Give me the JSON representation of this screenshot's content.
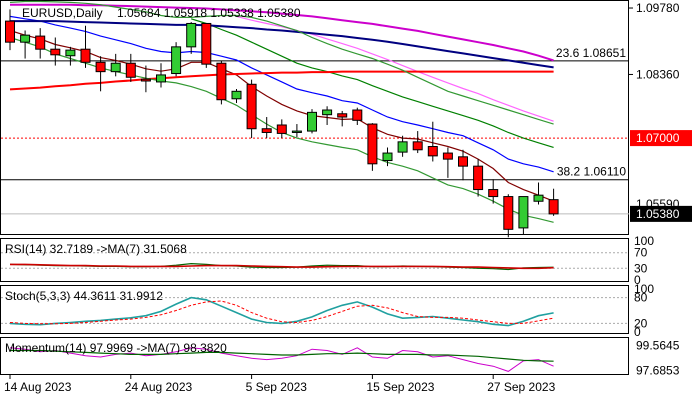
{
  "chart_data": {
    "type": "candlestick",
    "instrument": "EURUSD,Daily",
    "header_ohlc": "1.05684 1.05918 1.05338 1.05380",
    "x_labels": [
      {
        "idx": 0,
        "text": "14 Aug 2023"
      },
      {
        "idx": 8,
        "text": "24 Aug 2023"
      },
      {
        "idx": 16,
        "text": "5 Sep 2023"
      },
      {
        "idx": 24,
        "text": "15 Sep 2023"
      },
      {
        "idx": 32,
        "text": "27 Sep 2023"
      }
    ],
    "price_axis": {
      "ylim": [
        1.0495,
        1.0993
      ],
      "ticks": [
        "1.09780",
        "1.08360",
        "1.05380"
      ],
      "partial_tick": {
        "text": "1.05590",
        "value": 1.0559
      },
      "current": {
        "text": "1.05380",
        "value": 1.0538
      },
      "level_box": {
        "text": "1.07000",
        "value": 1.07,
        "color": "#ff0000"
      }
    },
    "fib_levels": [
      {
        "label": "23.6 1.08651",
        "value": 1.08651
      },
      {
        "label": "38.2 1.06110",
        "value": 1.0611
      }
    ],
    "candles": [
      {
        "o": 1.095,
        "h": 1.0975,
        "l": 1.0888,
        "c": 1.0905
      },
      {
        "o": 1.0905,
        "h": 1.093,
        "l": 1.087,
        "c": 1.092
      },
      {
        "o": 1.0918,
        "h": 1.0935,
        "l": 1.087,
        "c": 1.089
      },
      {
        "o": 1.089,
        "h": 1.0915,
        "l": 1.0855,
        "c": 1.0878
      },
      {
        "o": 1.0876,
        "h": 1.0895,
        "l": 1.0855,
        "c": 1.0888
      },
      {
        "o": 1.089,
        "h": 1.094,
        "l": 1.085,
        "c": 1.0862
      },
      {
        "o": 1.0862,
        "h": 1.0875,
        "l": 1.08,
        "c": 1.0842
      },
      {
        "o": 1.0842,
        "h": 1.088,
        "l": 1.0832,
        "c": 1.086
      },
      {
        "o": 1.086,
        "h": 1.088,
        "l": 1.082,
        "c": 1.083
      },
      {
        "o": 1.0826,
        "h": 1.0855,
        "l": 1.0798,
        "c": 1.0822
      },
      {
        "o": 1.082,
        "h": 1.086,
        "l": 1.0808,
        "c": 1.0835
      },
      {
        "o": 1.0838,
        "h": 1.0905,
        "l": 1.0832,
        "c": 1.0895
      },
      {
        "o": 1.0895,
        "h": 1.0948,
        "l": 1.088,
        "c": 1.0945
      },
      {
        "o": 1.0945,
        "h": 1.0945,
        "l": 1.085,
        "c": 1.0858
      },
      {
        "o": 1.086,
        "h": 1.0865,
        "l": 1.0772,
        "c": 1.0782
      },
      {
        "o": 1.0784,
        "h": 1.0805,
        "l": 1.0775,
        "c": 1.08
      },
      {
        "o": 1.0815,
        "h": 1.0825,
        "l": 1.07,
        "c": 1.072
      },
      {
        "o": 1.072,
        "h": 1.0745,
        "l": 1.07,
        "c": 1.0712
      },
      {
        "o": 1.0728,
        "h": 1.074,
        "l": 1.07,
        "c": 1.071
      },
      {
        "o": 1.0712,
        "h": 1.073,
        "l": 1.0702,
        "c": 1.0715
      },
      {
        "o": 1.0715,
        "h": 1.0762,
        "l": 1.071,
        "c": 1.0755
      },
      {
        "o": 1.075,
        "h": 1.0768,
        "l": 1.0728,
        "c": 1.076
      },
      {
        "o": 1.0752,
        "h": 1.0758,
        "l": 1.0725,
        "c": 1.0745
      },
      {
        "o": 1.076,
        "h": 1.0765,
        "l": 1.0728,
        "c": 1.0738
      },
      {
        "o": 1.073,
        "h": 1.0732,
        "l": 1.063,
        "c": 1.0645
      },
      {
        "o": 1.0652,
        "h": 1.068,
        "l": 1.064,
        "c": 1.0668
      },
      {
        "o": 1.067,
        "h": 1.0705,
        "l": 1.066,
        "c": 1.0692
      },
      {
        "o": 1.0692,
        "h": 1.0715,
        "l": 1.0668,
        "c": 1.0675
      },
      {
        "o": 1.0682,
        "h": 1.0735,
        "l": 1.065,
        "c": 1.0662
      },
      {
        "o": 1.0668,
        "h": 1.068,
        "l": 1.0615,
        "c": 1.0655
      },
      {
        "o": 1.066,
        "h": 1.0675,
        "l": 1.061,
        "c": 1.064
      },
      {
        "o": 1.064,
        "h": 1.0655,
        "l": 1.0575,
        "c": 1.059
      },
      {
        "o": 1.059,
        "h": 1.0612,
        "l": 1.056,
        "c": 1.0575
      },
      {
        "o": 1.0575,
        "h": 1.058,
        "l": 1.0488,
        "c": 1.0505
      },
      {
        "o": 1.0508,
        "h": 1.0575,
        "l": 1.0495,
        "c": 1.0575
      },
      {
        "o": 1.0565,
        "h": 1.0605,
        "l": 1.0558,
        "c": 1.0578
      },
      {
        "o": 1.05684,
        "h": 1.05918,
        "l": 1.05338,
        "c": 1.0538
      }
    ],
    "ma_lines": [
      {
        "name": "ma-darkred",
        "color": "#800000",
        "values": [
          1.093,
          1.092,
          1.0912,
          1.09,
          1.0893,
          1.0885,
          1.0872,
          1.0866,
          1.0858,
          1.0848,
          1.0843,
          1.0848,
          1.0862,
          1.0862,
          1.0848,
          1.0835,
          1.081,
          1.079,
          1.0772,
          1.0758,
          1.0748,
          1.0744,
          1.074,
          1.0741,
          1.0722,
          1.0708,
          1.07,
          1.0698,
          1.069,
          1.0682,
          1.0672,
          1.0655,
          1.0635,
          1.0605,
          1.059,
          1.0578,
          1.0565
        ]
      },
      {
        "name": "ma-blue",
        "color": "#0000ff",
        "values": [
          1.096,
          1.0955,
          1.095,
          1.0942,
          1.0935,
          1.0928,
          1.0918,
          1.091,
          1.0902,
          1.0892,
          1.0885,
          1.0882,
          1.0885,
          1.0883,
          1.0875,
          1.0867,
          1.085,
          1.0835,
          1.082,
          1.0805,
          1.0797,
          1.079,
          1.078,
          1.0775,
          1.076,
          1.0745,
          1.0735,
          1.0728,
          1.072,
          1.0712,
          1.0705,
          1.069,
          1.0675,
          1.0655,
          1.0645,
          1.0638,
          1.0628
        ]
      },
      {
        "name": "ma-green",
        "color": "#008000",
        "values": [
          null,
          null,
          null,
          null,
          null,
          null,
          null,
          null,
          null,
          null,
          null,
          null,
          1.0955,
          1.0945,
          1.0932,
          1.092,
          1.0905,
          1.089,
          1.0875,
          1.086,
          1.085,
          1.0842,
          1.0833,
          1.0825,
          1.0812,
          1.08,
          1.0788,
          1.0778,
          1.0768,
          1.0758,
          1.0748,
          1.0738,
          1.0726,
          1.0712,
          1.07,
          1.069,
          1.068
        ]
      },
      {
        "name": "ma-pink",
        "color": "#ff66ff",
        "values": [
          null,
          null,
          null,
          null,
          null,
          null,
          null,
          null,
          null,
          null,
          null,
          null,
          null,
          null,
          null,
          1.096,
          1.0952,
          1.0945,
          1.0938,
          1.093,
          1.0922,
          1.0912,
          1.0902,
          1.0892,
          1.088,
          1.0868,
          1.0855,
          1.0842,
          1.083,
          1.0818,
          1.0806,
          1.0795,
          1.0782,
          1.077,
          1.0758,
          1.0747,
          1.0736
        ]
      },
      {
        "name": "ma-navy",
        "color": "#000080",
        "values": [
          1.095,
          1.095,
          1.095,
          1.095,
          1.0949,
          1.0948,
          1.0947,
          1.0946,
          1.0945,
          1.0944,
          1.0943,
          1.0942,
          1.0942,
          1.0941,
          1.0939,
          1.0937,
          1.0935,
          1.0932,
          1.093,
          1.0927,
          1.0924,
          1.0921,
          1.0918,
          1.0914,
          1.091,
          1.0906,
          1.0901,
          1.0896,
          1.0891,
          1.0886,
          1.0881,
          1.0876,
          1.0871,
          1.0866,
          1.0861,
          1.0856,
          1.0851
        ]
      },
      {
        "name": "ma-magenta",
        "color": "#cc00cc",
        "values": [
          1.0985,
          1.0985,
          1.0985,
          1.0985,
          1.0985,
          1.0984,
          1.0984,
          1.0983,
          1.0982,
          1.0981,
          1.098,
          1.0979,
          1.0978,
          1.0977,
          1.0975,
          1.0973,
          1.0971,
          1.0969,
          1.0966,
          1.0963,
          1.096,
          1.0956,
          1.0952,
          1.0948,
          1.0944,
          1.0939,
          1.0934,
          1.0929,
          1.0923,
          1.0917,
          1.0911,
          1.0905,
          1.0899,
          1.0892,
          1.0885,
          1.0876,
          1.0866
        ]
      },
      {
        "name": "ma-red",
        "color": "#ff0000",
        "values": [
          1.0804,
          1.0806,
          1.0808,
          1.0811,
          1.0813,
          1.0816,
          1.0818,
          1.0821,
          1.0823,
          1.0826,
          1.0828,
          1.083,
          1.0832,
          1.0834,
          1.0836,
          1.0837,
          1.0838,
          1.0839,
          1.084,
          1.084,
          1.0841,
          1.0841,
          1.0842,
          1.0842,
          1.0842,
          1.0842,
          1.0842,
          1.0842,
          1.0842,
          1.0842,
          1.0842,
          1.0842,
          1.0842,
          1.0842,
          1.0842,
          1.0842,
          1.0842
        ]
      },
      {
        "name": "bb-upper",
        "color": "#339933",
        "values": [
          1.099,
          1.0992,
          1.0992,
          1.0991,
          1.099,
          1.0988,
          1.0985,
          1.098,
          1.0975,
          1.097,
          1.0962,
          1.0958,
          1.0958,
          1.096,
          1.0962,
          1.0962,
          1.0958,
          1.095,
          1.094,
          1.093,
          1.0915,
          1.0902,
          1.089,
          1.088,
          1.087,
          1.0858,
          1.0845,
          1.083,
          1.0815,
          1.08,
          1.079,
          1.078,
          1.077,
          1.076,
          1.075,
          1.074,
          1.073
        ]
      },
      {
        "name": "bb-lower",
        "color": "#339933",
        "values": [
          1.0915,
          1.0905,
          1.0895,
          1.088,
          1.087,
          1.086,
          1.085,
          1.0842,
          1.0835,
          1.0828,
          1.0822,
          1.0818,
          1.081,
          1.08,
          1.0785,
          1.077,
          1.075,
          1.073,
          1.0712,
          1.07,
          1.0692,
          1.0686,
          1.068,
          1.0675,
          1.066,
          1.0648,
          1.064,
          1.063,
          1.0615,
          1.06,
          1.0592,
          1.058,
          1.0565,
          1.0548,
          1.0535,
          1.0528,
          1.052
        ]
      }
    ],
    "rsi": {
      "label": "RSI(14) 32.7189 ->MA(7) 31.5068",
      "ticks": [
        "100",
        "70",
        "30",
        "0"
      ],
      "ylim": [
        0,
        100
      ],
      "rsi_values": [
        40,
        39,
        38,
        37,
        37,
        36,
        35,
        35,
        34,
        34,
        35,
        38,
        42,
        40,
        37,
        36,
        33,
        32,
        32,
        33,
        36,
        38,
        37,
        37,
        34,
        34,
        36,
        35,
        34,
        33,
        32,
        30,
        29,
        27,
        31,
        32,
        32.7189
      ],
      "ma_values": [
        40,
        40,
        39,
        38,
        37,
        37,
        36,
        36,
        35,
        35,
        35,
        35,
        36,
        37,
        37,
        37,
        36,
        35,
        34,
        33,
        33,
        34,
        35,
        35,
        35,
        35,
        35,
        35,
        35,
        34,
        33,
        33,
        32,
        31,
        30,
        30,
        31.5068
      ]
    },
    "stoch": {
      "label": "Stoch(5,3,3) 44.3611 31.9912",
      "ticks": [
        "100",
        "80",
        "20",
        "0"
      ],
      "ylim": [
        0,
        100
      ],
      "k_values": [
        20,
        18,
        17,
        20,
        22,
        25,
        27,
        30,
        33,
        38,
        48,
        65,
        80,
        75,
        60,
        45,
        30,
        22,
        20,
        25,
        35,
        50,
        62,
        70,
        58,
        42,
        32,
        34,
        36,
        32,
        28,
        24,
        18,
        15,
        25,
        38,
        44.3611
      ],
      "d_values": [
        22,
        20,
        19,
        19,
        20,
        22,
        25,
        28,
        30,
        34,
        40,
        50,
        62,
        70,
        72,
        62,
        45,
        32,
        24,
        22,
        27,
        36,
        48,
        60,
        62,
        56,
        45,
        36,
        34,
        34,
        32,
        28,
        24,
        20,
        20,
        26,
        31.9912
      ]
    },
    "momentum": {
      "label": "Momentum(14) 97.9969 ->MA(7) 98.3820",
      "ticks": [
        "99.5645",
        "97.6853"
      ],
      "ylim": [
        97.4,
        100.0
      ],
      "mom_values": [
        99.4,
        99.3,
        99.1,
        99.2,
        99.0,
        98.8,
        98.7,
        98.9,
        99.0,
        98.8,
        98.9,
        99.1,
        99.4,
        99.3,
        99.0,
        98.8,
        98.6,
        98.5,
        98.6,
        98.8,
        99.3,
        99.2,
        98.9,
        99.4,
        98.7,
        98.6,
        99.2,
        99.1,
        98.7,
        98.8,
        98.5,
        98.2,
        98.0,
        97.6,
        98.4,
        98.5,
        97.9969
      ],
      "ma_values": [
        99.2,
        99.2,
        99.2,
        99.15,
        99.1,
        99.05,
        99.0,
        98.95,
        98.9,
        98.9,
        98.9,
        98.95,
        99.0,
        99.05,
        99.05,
        99.0,
        98.95,
        98.9,
        98.85,
        98.85,
        98.9,
        98.95,
        98.95,
        99.0,
        98.95,
        98.9,
        98.9,
        98.9,
        98.85,
        98.85,
        98.8,
        98.75,
        98.65,
        98.55,
        98.45,
        98.4,
        98.382
      ]
    }
  }
}
